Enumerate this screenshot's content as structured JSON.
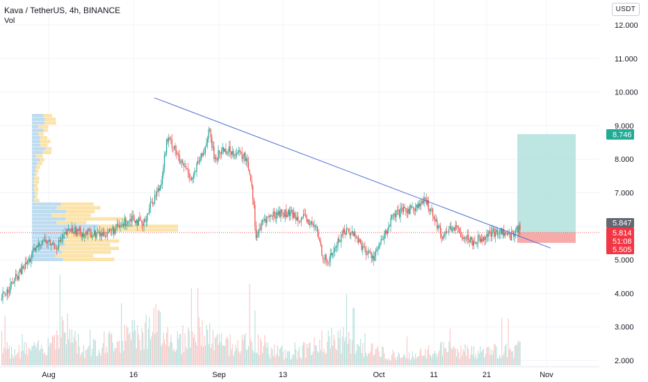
{
  "header": {
    "symbol_title": "Kava / TetherUS, 4h, BINANCE",
    "indicator": "Vol",
    "currency": "USDT"
  },
  "colors": {
    "up": "#26a69a",
    "down": "#ef5350",
    "vol_up": "#b2dfdb",
    "vol_down": "#f8c5c4",
    "trendline": "#4c6ed8",
    "target_zone": "#b2e0dc",
    "stop_zone": "#f7a1a0",
    "vp_up": "#bddcf1",
    "vp_down": "#fbe3a9",
    "axis_text": "#131722",
    "grid": "#f0f3fa"
  },
  "chart_data": {
    "type": "candlestick",
    "symbol": "KAVA/USDT",
    "timeframe": "4h",
    "exchange": "BINANCE",
    "y_axis": {
      "ticks": [
        "12.000",
        "11.000",
        "10.000",
        "9.000",
        "8.000",
        "7.000",
        "6.000",
        "5.000",
        "4.000",
        "3.000",
        "2.000"
      ],
      "range": [
        1.75,
        12.35
      ],
      "scale": "linear"
    },
    "x_axis": {
      "ticks": [
        "Aug",
        "16",
        "Sep",
        "13",
        "Oct",
        "11",
        "21",
        "Nov"
      ]
    },
    "grid": true,
    "path": [
      [
        0,
        3.8
      ],
      [
        40,
        4.95
      ],
      [
        60,
        5.6
      ],
      [
        80,
        5.4
      ],
      [
        100,
        5.9
      ],
      [
        120,
        5.8
      ],
      [
        145,
        5.75
      ],
      [
        170,
        5.95
      ],
      [
        190,
        6.3
      ],
      [
        205,
        6.0
      ],
      [
        215,
        6.6
      ],
      [
        230,
        7.2
      ],
      [
        240,
        8.6
      ],
      [
        250,
        8.4
      ],
      [
        258,
        7.9
      ],
      [
        268,
        7.7
      ],
      [
        276,
        7.4
      ],
      [
        285,
        7.9
      ],
      [
        293,
        8.2
      ],
      [
        300,
        8.9
      ],
      [
        308,
        8.0
      ],
      [
        320,
        8.3
      ],
      [
        340,
        8.2
      ],
      [
        355,
        8.0
      ],
      [
        362,
        7.2
      ],
      [
        368,
        5.7
      ],
      [
        380,
        6.2
      ],
      [
        400,
        6.4
      ],
      [
        420,
        6.35
      ],
      [
        440,
        6.2
      ],
      [
        455,
        5.9
      ],
      [
        463,
        5.2
      ],
      [
        470,
        4.9
      ],
      [
        480,
        5.3
      ],
      [
        495,
        5.9
      ],
      [
        510,
        5.75
      ],
      [
        525,
        5.25
      ],
      [
        537,
        5.1
      ],
      [
        550,
        5.6
      ],
      [
        565,
        6.3
      ],
      [
        580,
        6.45
      ],
      [
        600,
        6.6
      ],
      [
        612,
        6.75
      ],
      [
        622,
        6.4
      ],
      [
        635,
        5.7
      ],
      [
        650,
        6.0
      ],
      [
        665,
        5.75
      ],
      [
        680,
        5.55
      ],
      [
        700,
        5.75
      ],
      [
        720,
        5.85
      ],
      [
        733,
        5.7
      ],
      [
        740,
        5.85
      ],
      [
        746,
        5.95
      ],
      [
        748,
        5.85
      ]
    ],
    "volume_path": [
      [
        0,
        0.35
      ],
      [
        60,
        0.4
      ],
      [
        90,
        0.95
      ],
      [
        120,
        0.35
      ],
      [
        150,
        0.55
      ],
      [
        190,
        0.7
      ],
      [
        230,
        1.0
      ],
      [
        250,
        0.55
      ],
      [
        290,
        0.8
      ],
      [
        310,
        0.55
      ],
      [
        345,
        0.45
      ],
      [
        360,
        0.6
      ],
      [
        380,
        0.4
      ],
      [
        420,
        0.25
      ],
      [
        440,
        0.4
      ],
      [
        460,
        0.5
      ],
      [
        490,
        0.65
      ],
      [
        520,
        0.4
      ],
      [
        550,
        0.3
      ],
      [
        580,
        0.2
      ],
      [
        600,
        0.25
      ],
      [
        640,
        0.4
      ],
      [
        680,
        0.3
      ],
      [
        720,
        0.35
      ],
      [
        748,
        0.4
      ]
    ],
    "annotations": {
      "trendline": {
        "from": [
          "Aug 19",
          9.83
        ],
        "to": [
          "Oct 29",
          5.35
        ]
      },
      "position": {
        "entry": 5.814,
        "target": 8.746,
        "stop": 5.505
      }
    },
    "price_labels": {
      "target": "8.746",
      "high": "5.847",
      "last": "5.814",
      "countdown": "51:08",
      "stop": "5.505"
    }
  }
}
